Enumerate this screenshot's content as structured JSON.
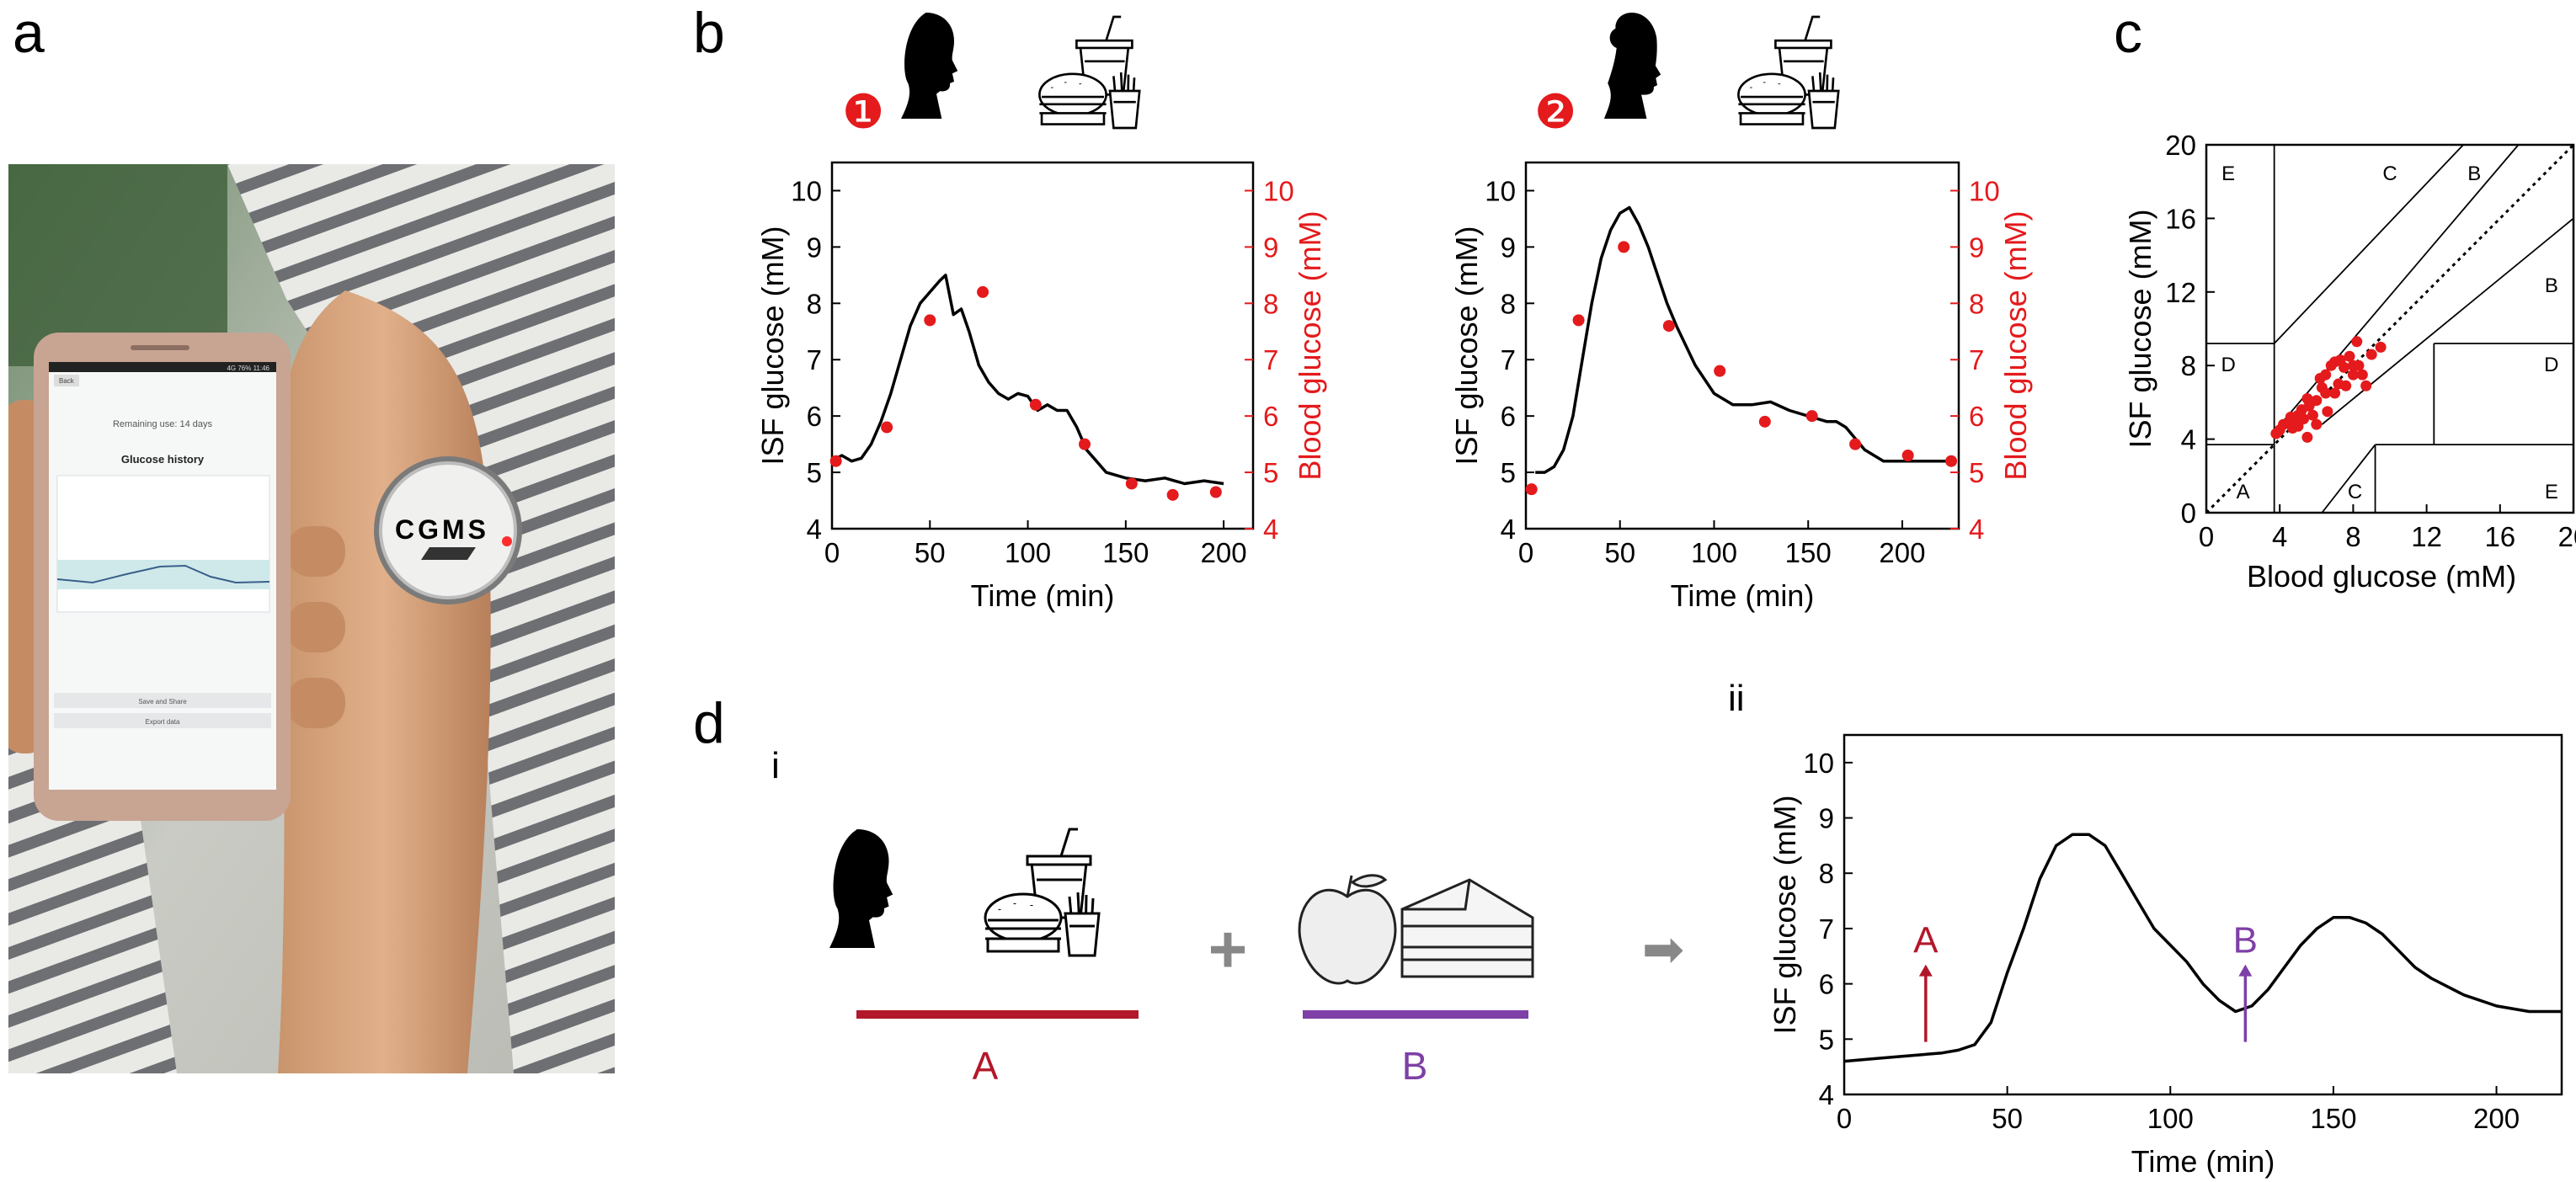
{
  "panel_labels": {
    "a": "a",
    "b": "b",
    "c": "c",
    "d": "d",
    "di": "i",
    "dii": "ii"
  },
  "photo": {
    "phone": {
      "back": "Back",
      "remaining": "Remaining use: 14 days",
      "history": "Glucose history",
      "save_share": "Save and Share",
      "export": "Export data",
      "status": "4G  76%  11:46"
    },
    "device_label": "CGMS"
  },
  "icons": {
    "subject1_badge": "❶",
    "subject2_badge": "❷",
    "male_head": "male-head-silhouette-icon",
    "female_head": "female-head-silhouette-icon",
    "fastfood": "burger-fries-soda-icon",
    "apple": "apple-icon",
    "cake": "cake-slice-icon"
  },
  "colors": {
    "accent_red": "#e41a1c",
    "black": "#000000",
    "purple": "#7e3fa6",
    "dark_red": "#b2182b",
    "gray": "#888888"
  },
  "chart_data": [
    {
      "id": "b1",
      "type": "line",
      "xlabel": "Time (min)",
      "ylabel": "ISF glucose (mM)",
      "y2label": "Blood glucose (mM)",
      "xlim": [
        0,
        215
      ],
      "ylim": [
        4,
        10.5
      ],
      "xticks": [
        0,
        50,
        100,
        150,
        200
      ],
      "yticks": [
        4,
        5,
        6,
        7,
        8,
        9,
        10
      ],
      "series": [
        {
          "kind": "line",
          "x": [
            0,
            5,
            10,
            15,
            20,
            25,
            30,
            35,
            40,
            45,
            50,
            55,
            58,
            62,
            66,
            70,
            75,
            80,
            85,
            90,
            95,
            100,
            105,
            110,
            115,
            120,
            125,
            130,
            135,
            140,
            150,
            160,
            170,
            180,
            190,
            200
          ],
          "y": [
            5.2,
            5.3,
            5.2,
            5.25,
            5.5,
            5.9,
            6.4,
            7.0,
            7.6,
            8.0,
            8.2,
            8.4,
            8.5,
            7.8,
            7.9,
            7.5,
            6.9,
            6.6,
            6.4,
            6.3,
            6.4,
            6.35,
            6.1,
            6.2,
            6.1,
            6.1,
            5.8,
            5.4,
            5.2,
            5.0,
            4.9,
            4.85,
            4.9,
            4.8,
            4.85,
            4.8
          ]
        },
        {
          "kind": "points",
          "x": [
            2,
            28,
            50,
            77,
            104,
            129,
            153,
            174,
            196
          ],
          "y": [
            5.2,
            5.8,
            7.7,
            8.2,
            6.2,
            5.5,
            4.8,
            4.6,
            4.65
          ]
        }
      ]
    },
    {
      "id": "b2",
      "type": "line",
      "xlabel": "Time (min)",
      "ylabel": "ISF glucose (mM)",
      "y2label": "Blood glucose (mM)",
      "xlim": [
        0,
        230
      ],
      "ylim": [
        4,
        10.5
      ],
      "xticks": [
        0,
        50,
        100,
        150,
        200
      ],
      "yticks": [
        4,
        5,
        6,
        7,
        8,
        9,
        10
      ],
      "series": [
        {
          "kind": "line",
          "x": [
            5,
            10,
            15,
            20,
            25,
            30,
            35,
            40,
            45,
            50,
            55,
            60,
            65,
            70,
            75,
            80,
            90,
            100,
            110,
            120,
            130,
            140,
            150,
            160,
            165,
            170,
            180,
            190,
            200,
            210,
            220,
            225
          ],
          "y": [
            5.0,
            5.0,
            5.1,
            5.4,
            6.0,
            7.0,
            8.0,
            8.8,
            9.3,
            9.6,
            9.7,
            9.4,
            9.0,
            8.5,
            8.0,
            7.6,
            6.9,
            6.4,
            6.2,
            6.2,
            6.25,
            6.1,
            6.0,
            5.9,
            5.9,
            5.8,
            5.4,
            5.2,
            5.2,
            5.2,
            5.2,
            5.2
          ]
        },
        {
          "kind": "points",
          "x": [
            3,
            28,
            52,
            76,
            103,
            127,
            152,
            175,
            203,
            226
          ],
          "y": [
            4.7,
            7.7,
            9.0,
            7.6,
            6.8,
            5.9,
            6.0,
            5.5,
            5.3,
            5.2
          ]
        }
      ]
    },
    {
      "id": "c",
      "type": "scatter",
      "xlabel": "Blood glucose (mM)",
      "ylabel": "ISF glucose (mM)",
      "xlim": [
        0,
        20
      ],
      "ylim": [
        0,
        20
      ],
      "xticks": [
        0,
        4,
        8,
        12,
        16,
        20
      ],
      "yticks": [
        0,
        4,
        8,
        12,
        16,
        20
      ],
      "zones": [
        "A",
        "B",
        "B",
        "C",
        "C",
        "D",
        "D",
        "E",
        "E"
      ],
      "x": [
        3.8,
        4.0,
        4.2,
        4.5,
        4.6,
        4.8,
        5.0,
        5.0,
        5.2,
        5.3,
        5.5,
        5.6,
        5.8,
        6.0,
        6.0,
        6.2,
        6.3,
        6.5,
        6.6,
        6.8,
        7.0,
        7.0,
        7.2,
        7.3,
        7.5,
        7.6,
        7.8,
        8.0,
        8.0,
        8.2,
        8.3,
        8.5,
        8.7,
        9.0,
        9.5,
        5.5,
        6.5,
        4.7
      ],
      "y": [
        4.3,
        4.5,
        4.8,
        4.9,
        5.2,
        5.0,
        5.3,
        4.7,
        5.6,
        5.1,
        4.1,
        5.8,
        5.3,
        6.1,
        4.8,
        7.3,
        6.8,
        6.5,
        5.5,
        8.0,
        8.2,
        6.5,
        7.0,
        8.3,
        7.9,
        6.9,
        8.5,
        8.0,
        7.5,
        9.3,
        8.0,
        7.5,
        6.9,
        8.6,
        9.0,
        6.2,
        7.5,
        4.6
      ]
    },
    {
      "id": "dii",
      "type": "line",
      "xlabel": "Time (min)",
      "ylabel": "ISF glucose (mM)",
      "xlim": [
        0,
        220
      ],
      "ylim": [
        4,
        10.5
      ],
      "xticks": [
        0,
        50,
        100,
        150,
        200
      ],
      "yticks": [
        4,
        5,
        6,
        7,
        8,
        9,
        10
      ],
      "annotations": [
        {
          "label": "A",
          "x": 25
        },
        {
          "label": "B",
          "x": 123
        }
      ],
      "series": [
        {
          "kind": "line",
          "x": [
            0,
            10,
            20,
            30,
            35,
            40,
            45,
            50,
            55,
            60,
            65,
            70,
            75,
            80,
            85,
            90,
            95,
            100,
            105,
            110,
            115,
            120,
            125,
            130,
            135,
            140,
            145,
            150,
            155,
            160,
            165,
            170,
            175,
            180,
            185,
            190,
            195,
            200,
            210,
            220
          ],
          "y": [
            4.6,
            4.65,
            4.7,
            4.75,
            4.8,
            4.9,
            5.3,
            6.2,
            7.0,
            7.9,
            8.5,
            8.7,
            8.7,
            8.5,
            8.0,
            7.5,
            7.0,
            6.7,
            6.4,
            6.0,
            5.7,
            5.5,
            5.6,
            5.9,
            6.3,
            6.7,
            7.0,
            7.2,
            7.2,
            7.1,
            6.9,
            6.6,
            6.3,
            6.1,
            5.95,
            5.8,
            5.7,
            5.6,
            5.5,
            5.5
          ]
        }
      ]
    }
  ],
  "panel_d": {
    "plus": "+",
    "arrow": "➡",
    "group_a": "A",
    "group_b": "B"
  }
}
